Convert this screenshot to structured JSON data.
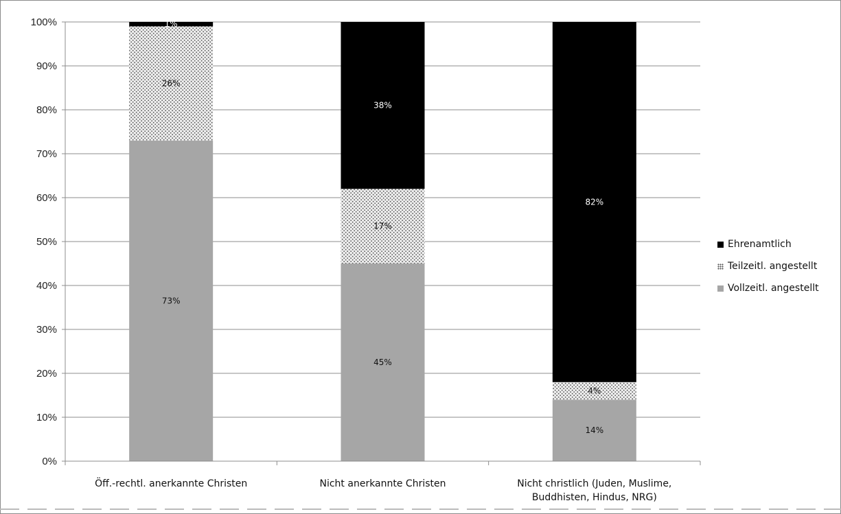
{
  "chart_data": {
    "type": "bar",
    "stacked": true,
    "percent": true,
    "categories": [
      [
        "Öff.-rechtl. anerkannte Christen"
      ],
      [
        "Nicht anerkannte Christen"
      ],
      [
        "Nicht christlich (Juden, Muslime,",
        "Buddhisten, Hindus, NRG)"
      ]
    ],
    "series": [
      {
        "name": "Vollzeitl. angestellt",
        "values": [
          73,
          45,
          14
        ],
        "labels": [
          "73%",
          "45%",
          "14%"
        ],
        "color": "#a6a6a6",
        "pattern": "solid"
      },
      {
        "name": "Teilzeitl. angestellt",
        "values": [
          26,
          17,
          4
        ],
        "labels": [
          "26%",
          "17%",
          "4%"
        ],
        "color": "#e6e6e6",
        "pattern": "dotted"
      },
      {
        "name": "Ehrenamtlich",
        "values": [
          1,
          38,
          82
        ],
        "labels": [
          "1%",
          "38%",
          "82%"
        ],
        "color": "#000000",
        "pattern": "solid"
      }
    ],
    "yticks": [
      "0%",
      "10%",
      "20%",
      "30%",
      "40%",
      "50%",
      "60%",
      "70%",
      "80%",
      "90%",
      "100%"
    ],
    "ylim": [
      0,
      100
    ],
    "grid": true,
    "legend_position": "right",
    "title": "",
    "xlabel": "",
    "ylabel": ""
  },
  "legend": {
    "items": [
      {
        "label": "Ehrenamtlich",
        "color": "#000000",
        "pattern": "solid"
      },
      {
        "label": "Teilzeitl. angestellt",
        "color": "#e6e6e6",
        "pattern": "dotted"
      },
      {
        "label": "Vollzeitl. angestellt",
        "color": "#a6a6a6",
        "pattern": "solid"
      }
    ]
  }
}
